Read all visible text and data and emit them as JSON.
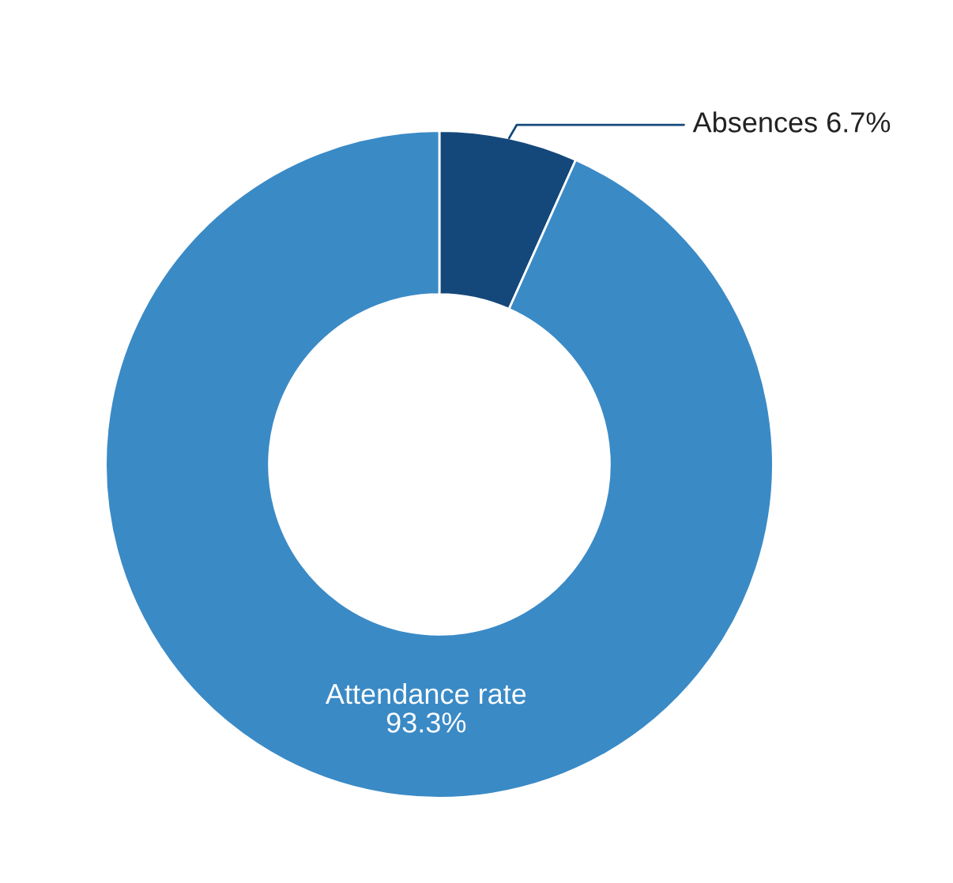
{
  "chart_data": {
    "type": "donut",
    "categories": [
      "Absences",
      "Attendance rate"
    ],
    "values": [
      6.7,
      93.3
    ],
    "colors": [
      "#15487a",
      "#3a8ac6"
    ],
    "value_labels": [
      "6.7%",
      "93.3%"
    ],
    "legend": false
  }
}
